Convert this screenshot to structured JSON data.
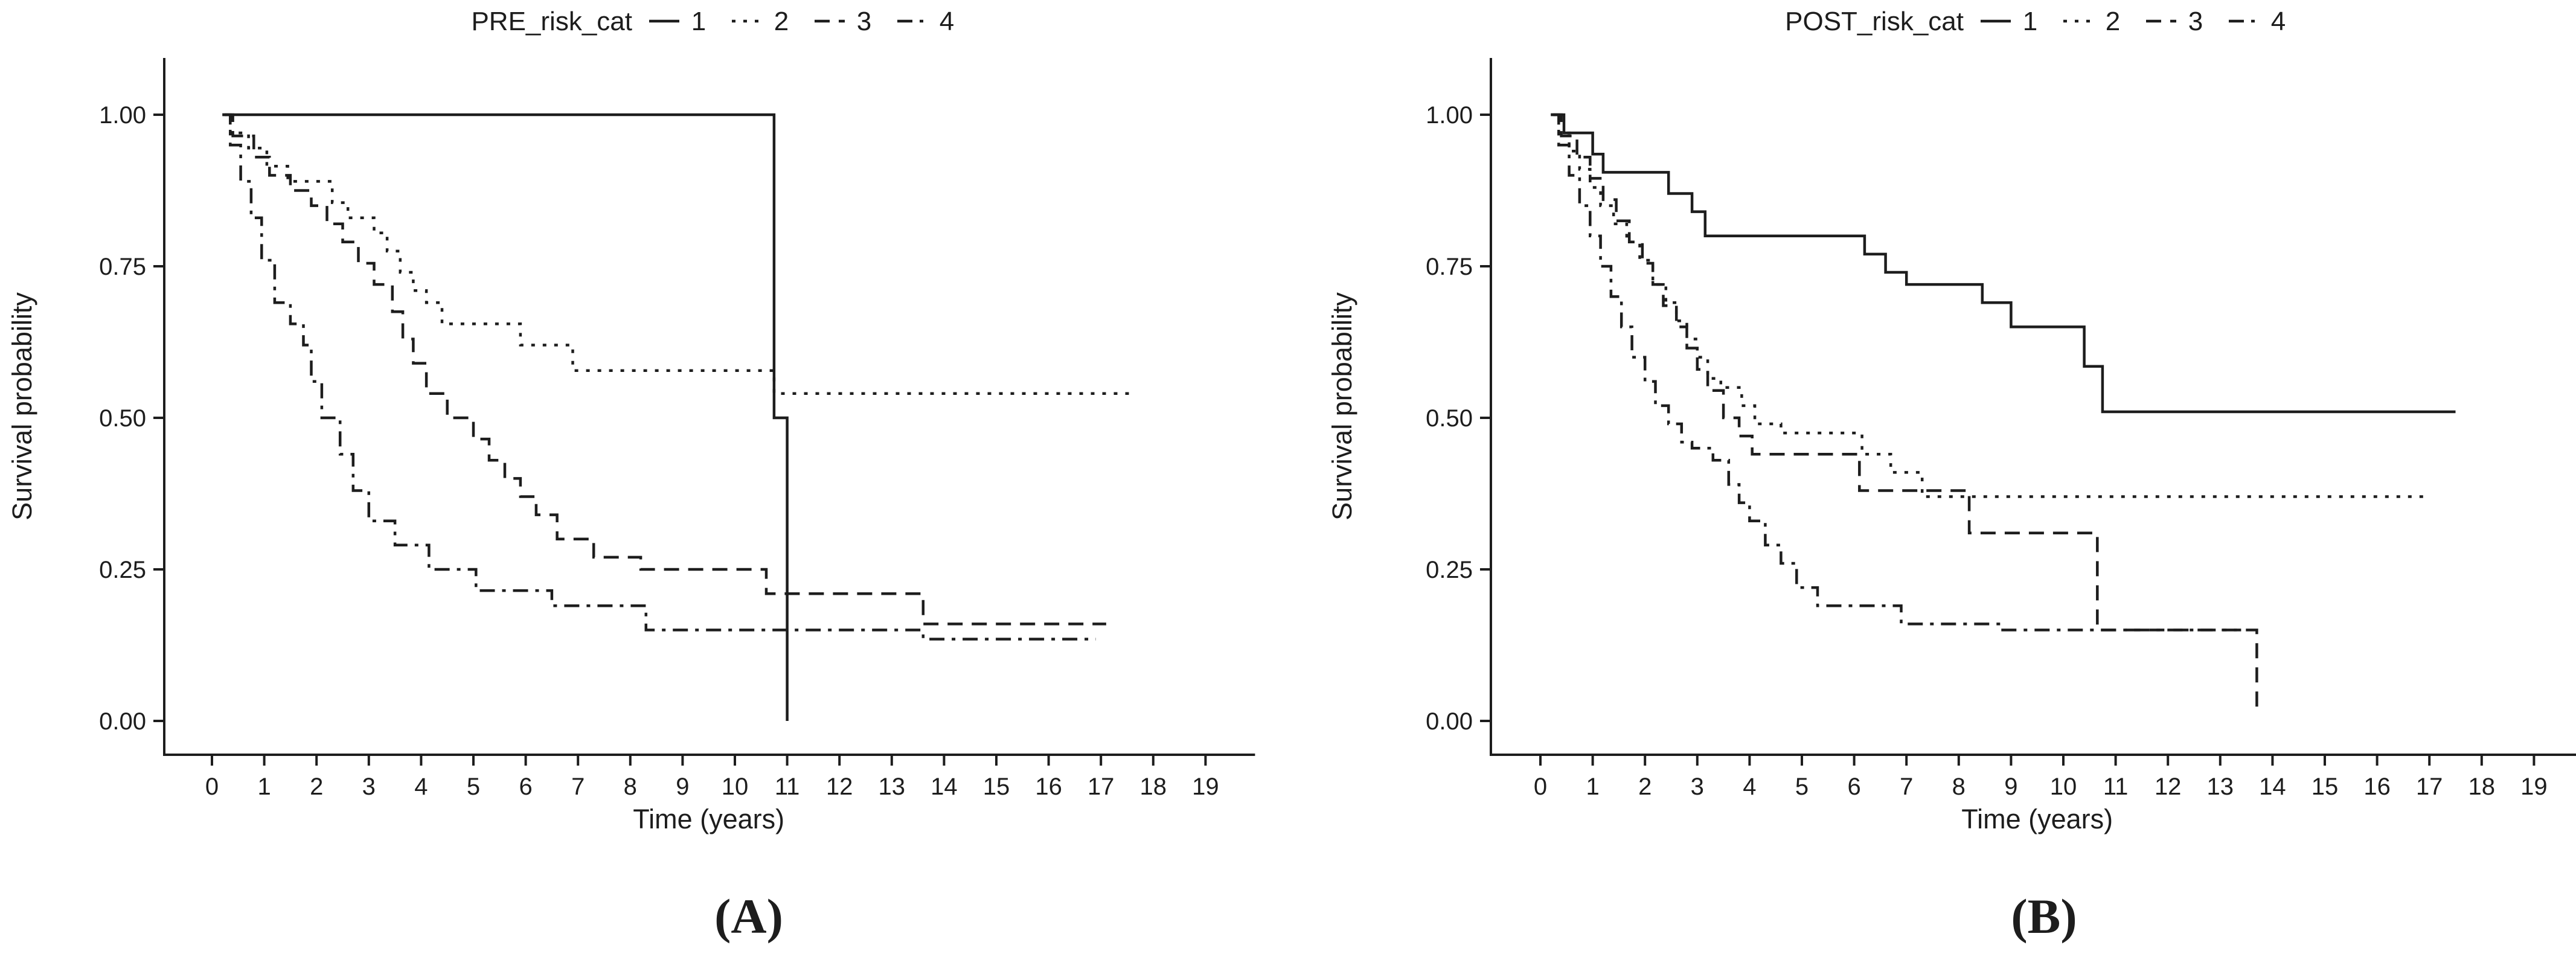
{
  "figure": {
    "background": "#ffffff",
    "line_color": "#1d1d1d"
  },
  "chart_data": [
    {
      "type": "line",
      "subtype": "kaplan-meier-step",
      "panel_id": "A",
      "caption": "(A)",
      "legend_title": "PRE_risk_cat",
      "legend_position": "top",
      "xlabel": "Time (years)",
      "ylabel": "Survival probability",
      "xlim": [
        0,
        19
      ],
      "ylim": [
        0.0,
        1.0
      ],
      "grid": false,
      "xtick_labels": [
        "0",
        "1",
        "2",
        "3",
        "4",
        "5",
        "6",
        "7",
        "8",
        "9",
        "10",
        "11",
        "12",
        "13",
        "14",
        "15",
        "16",
        "17",
        "18",
        "19"
      ],
      "ytick_labels": [
        "0.00",
        "0.25",
        "0.50",
        "0.75",
        "1.00"
      ],
      "series": [
        {
          "name": "1",
          "linetype": "solid",
          "end": 11.0,
          "points": [
            [
              0.2,
              1.0
            ],
            [
              10.75,
              0.5
            ],
            [
              11.0,
              0.0
            ]
          ]
        },
        {
          "name": "2",
          "linetype": "dotted",
          "end": 17.55,
          "points": [
            [
              0.2,
              1.0
            ],
            [
              0.35,
              0.97
            ],
            [
              0.7,
              0.945
            ],
            [
              1.05,
              0.915
            ],
            [
              1.45,
              0.89
            ],
            [
              2.3,
              0.855
            ],
            [
              2.6,
              0.83
            ],
            [
              3.1,
              0.805
            ],
            [
              3.35,
              0.775
            ],
            [
              3.6,
              0.74
            ],
            [
              3.85,
              0.71
            ],
            [
              4.1,
              0.69
            ],
            [
              4.4,
              0.655
            ],
            [
              5.9,
              0.62
            ],
            [
              6.9,
              0.578
            ],
            [
              10.75,
              0.54
            ]
          ]
        },
        {
          "name": "3",
          "linetype": "dashed",
          "end": 17.1,
          "points": [
            [
              0.25,
              1.0
            ],
            [
              0.4,
              0.965
            ],
            [
              0.8,
              0.93
            ],
            [
              1.1,
              0.9
            ],
            [
              1.5,
              0.875
            ],
            [
              1.9,
              0.85
            ],
            [
              2.2,
              0.82
            ],
            [
              2.5,
              0.79
            ],
            [
              2.8,
              0.755
            ],
            [
              3.1,
              0.72
            ],
            [
              3.45,
              0.675
            ],
            [
              3.65,
              0.63
            ],
            [
              3.85,
              0.59
            ],
            [
              4.1,
              0.54
            ],
            [
              4.5,
              0.5
            ],
            [
              5.0,
              0.465
            ],
            [
              5.3,
              0.43
            ],
            [
              5.6,
              0.4
            ],
            [
              5.9,
              0.37
            ],
            [
              6.2,
              0.34
            ],
            [
              6.6,
              0.3
            ],
            [
              7.3,
              0.27
            ],
            [
              8.2,
              0.25
            ],
            [
              10.6,
              0.21
            ],
            [
              13.6,
              0.16
            ]
          ]
        },
        {
          "name": "4",
          "linetype": "dashdot",
          "end": 16.9,
          "points": [
            [
              0.25,
              1.0
            ],
            [
              0.35,
              0.95
            ],
            [
              0.55,
              0.89
            ],
            [
              0.75,
              0.83
            ],
            [
              0.95,
              0.76
            ],
            [
              1.2,
              0.69
            ],
            [
              1.5,
              0.655
            ],
            [
              1.75,
              0.62
            ],
            [
              1.9,
              0.56
            ],
            [
              2.1,
              0.5
            ],
            [
              2.45,
              0.44
            ],
            [
              2.7,
              0.38
            ],
            [
              3.0,
              0.33
            ],
            [
              3.5,
              0.29
            ],
            [
              4.15,
              0.25
            ],
            [
              5.05,
              0.215
            ],
            [
              6.5,
              0.19
            ],
            [
              8.3,
              0.15
            ],
            [
              13.6,
              0.135
            ]
          ]
        }
      ]
    },
    {
      "type": "line",
      "subtype": "kaplan-meier-step",
      "panel_id": "B",
      "caption": "(B)",
      "legend_title": "POST_risk_cat",
      "legend_position": "top",
      "xlabel": "Time (years)",
      "ylabel": "Survival probability",
      "xlim": [
        0,
        19
      ],
      "ylim": [
        0.0,
        1.0
      ],
      "grid": false,
      "xtick_labels": [
        "0",
        "1",
        "2",
        "3",
        "4",
        "5",
        "6",
        "7",
        "8",
        "9",
        "10",
        "11",
        "12",
        "13",
        "14",
        "15",
        "16",
        "17",
        "18",
        "19"
      ],
      "ytick_labels": [
        "0.00",
        "0.25",
        "0.50",
        "0.75",
        "1.00"
      ],
      "series": [
        {
          "name": "1",
          "linetype": "solid",
          "end": 17.5,
          "points": [
            [
              0.2,
              1.0
            ],
            [
              0.45,
              0.97
            ],
            [
              1.0,
              0.935
            ],
            [
              1.2,
              0.905
            ],
            [
              2.45,
              0.87
            ],
            [
              2.9,
              0.84
            ],
            [
              3.15,
              0.8
            ],
            [
              6.2,
              0.77
            ],
            [
              6.6,
              0.74
            ],
            [
              7.0,
              0.72
            ],
            [
              8.45,
              0.69
            ],
            [
              9.0,
              0.65
            ],
            [
              10.4,
              0.585
            ],
            [
              10.75,
              0.51
            ]
          ]
        },
        {
          "name": "2",
          "linetype": "dotted",
          "end": 16.9,
          "points": [
            [
              0.2,
              1.0
            ],
            [
              0.35,
              0.97
            ],
            [
              0.55,
              0.94
            ],
            [
              0.75,
              0.91
            ],
            [
              0.95,
              0.88
            ],
            [
              1.15,
              0.85
            ],
            [
              1.4,
              0.82
            ],
            [
              1.65,
              0.79
            ],
            [
              1.9,
              0.76
            ],
            [
              2.15,
              0.72
            ],
            [
              2.4,
              0.69
            ],
            [
              2.6,
              0.66
            ],
            [
              2.8,
              0.63
            ],
            [
              3.0,
              0.6
            ],
            [
              3.2,
              0.565
            ],
            [
              3.45,
              0.55
            ],
            [
              3.85,
              0.52
            ],
            [
              4.1,
              0.49
            ],
            [
              4.6,
              0.475
            ],
            [
              6.15,
              0.44
            ],
            [
              6.7,
              0.41
            ],
            [
              7.3,
              0.37
            ]
          ]
        },
        {
          "name": "3",
          "linetype": "dashed",
          "end": 13.7,
          "points": [
            [
              0.25,
              1.0
            ],
            [
              0.4,
              0.965
            ],
            [
              0.7,
              0.93
            ],
            [
              0.95,
              0.895
            ],
            [
              1.2,
              0.86
            ],
            [
              1.45,
              0.825
            ],
            [
              1.7,
              0.79
            ],
            [
              1.95,
              0.755
            ],
            [
              2.15,
              0.72
            ],
            [
              2.35,
              0.685
            ],
            [
              2.6,
              0.65
            ],
            [
              2.8,
              0.615
            ],
            [
              3.0,
              0.58
            ],
            [
              3.2,
              0.545
            ],
            [
              3.5,
              0.5
            ],
            [
              3.8,
              0.47
            ],
            [
              4.05,
              0.44
            ],
            [
              6.1,
              0.38
            ],
            [
              8.2,
              0.31
            ],
            [
              10.65,
              0.15
            ],
            [
              13.7,
              0.01
            ]
          ]
        },
        {
          "name": "4",
          "linetype": "dashdot",
          "end": 13.4,
          "points": [
            [
              0.25,
              1.0
            ],
            [
              0.35,
              0.95
            ],
            [
              0.55,
              0.9
            ],
            [
              0.75,
              0.85
            ],
            [
              0.95,
              0.8
            ],
            [
              1.15,
              0.75
            ],
            [
              1.35,
              0.7
            ],
            [
              1.55,
              0.65
            ],
            [
              1.75,
              0.6
            ],
            [
              2.0,
              0.56
            ],
            [
              2.2,
              0.52
            ],
            [
              2.45,
              0.49
            ],
            [
              2.7,
              0.46
            ],
            [
              2.9,
              0.45
            ],
            [
              3.3,
              0.43
            ],
            [
              3.6,
              0.39
            ],
            [
              3.8,
              0.36
            ],
            [
              4.0,
              0.33
            ],
            [
              4.3,
              0.29
            ],
            [
              4.6,
              0.26
            ],
            [
              4.9,
              0.22
            ],
            [
              5.3,
              0.19
            ],
            [
              6.9,
              0.16
            ],
            [
              8.8,
              0.15
            ]
          ]
        }
      ]
    }
  ]
}
